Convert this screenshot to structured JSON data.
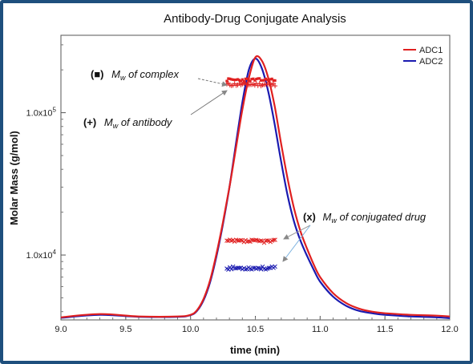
{
  "chart_data": {
    "type": "line",
    "title": "Antibody-Drug Conjugate Analysis",
    "xlabel": "time (min)",
    "ylabel": "Molar Mass (g/mol)",
    "xlim": [
      9.0,
      12.0
    ],
    "ylim": [
      3500,
      350000
    ],
    "yscale": "log",
    "x_ticks": [
      {
        "v": 9.0,
        "label": "9.0"
      },
      {
        "v": 9.5,
        "label": "9.5"
      },
      {
        "v": 10.0,
        "label": "10.0"
      },
      {
        "v": 10.5,
        "label": "10.5"
      },
      {
        "v": 11.0,
        "label": "11.0"
      },
      {
        "v": 11.5,
        "label": "11.5"
      },
      {
        "v": 12.0,
        "label": "12.0"
      }
    ],
    "y_ticks": [
      {
        "v": 10000,
        "label": "1.0x10",
        "exp": "4"
      },
      {
        "v": 100000,
        "label": "1.0x10",
        "exp": "5"
      }
    ],
    "grid": false,
    "legend_position": "top-right",
    "series": [
      {
        "name": "ADC1",
        "color": "#e02020",
        "chromatogram": {
          "x": [
            9.0,
            9.3,
            9.6,
            9.9,
            10.0,
            10.05,
            10.1,
            10.15,
            10.2,
            10.25,
            10.3,
            10.35,
            10.4,
            10.45,
            10.5,
            10.55,
            10.6,
            10.65,
            10.7,
            10.75,
            10.8,
            10.85,
            10.9,
            10.95,
            11.0,
            11.1,
            11.2,
            11.3,
            11.4,
            11.5,
            11.7,
            11.9,
            12.0
          ],
          "y": [
            3650,
            3850,
            3700,
            3700,
            3800,
            4100,
            4900,
            6600,
            10200,
            17000,
            30000,
            56000,
            105000,
            175000,
            245000,
            232000,
            175000,
            110000,
            60000,
            34000,
            21000,
            14500,
            11000,
            8600,
            7000,
            5400,
            4600,
            4200,
            4000,
            3900,
            3800,
            3750,
            3700
          ]
        },
        "mw_complex": {
          "x_range": [
            10.28,
            10.66
          ],
          "value": 170000
        },
        "mw_antibody": {
          "x_range": [
            10.28,
            10.66
          ],
          "value": 158000
        },
        "mw_conjugated_drug": {
          "x_range": [
            10.28,
            10.66
          ],
          "value": 12500
        }
      },
      {
        "name": "ADC2",
        "color": "#1a1ab0",
        "chromatogram": {
          "x": [
            9.0,
            9.3,
            9.6,
            9.9,
            10.0,
            10.05,
            10.1,
            10.15,
            10.2,
            10.25,
            10.3,
            10.35,
            10.4,
            10.45,
            10.5,
            10.55,
            10.6,
            10.65,
            10.7,
            10.75,
            10.8,
            10.85,
            10.9,
            10.95,
            11.0,
            11.1,
            11.2,
            11.3,
            11.4,
            11.5,
            11.7,
            11.9,
            12.0
          ],
          "y": [
            3620,
            3800,
            3680,
            3680,
            3780,
            4050,
            4800,
            6400,
            9800,
            16500,
            30000,
            60000,
            118000,
            200000,
            240000,
            205000,
            140000,
            82000,
            45000,
            26000,
            17000,
            12500,
            9800,
            7900,
            6500,
            5100,
            4400,
            4050,
            3900,
            3800,
            3700,
            3650,
            3600
          ]
        },
        "mw_conjugated_drug": {
          "x_range": [
            10.28,
            10.66
          ],
          "value": 8100
        }
      }
    ],
    "annotations": [
      {
        "id": "complex",
        "symbol": "(■)",
        "text_pre": "M",
        "sub": "w",
        "text_post": " of complex"
      },
      {
        "id": "antibody",
        "symbol": "(+)",
        "text_pre": "M",
        "sub": "w",
        "text_post": " of antibody"
      },
      {
        "id": "drug",
        "symbol": "(x)",
        "text_pre": "M",
        "sub": "w",
        "text_post": " of conjugated drug"
      }
    ]
  }
}
